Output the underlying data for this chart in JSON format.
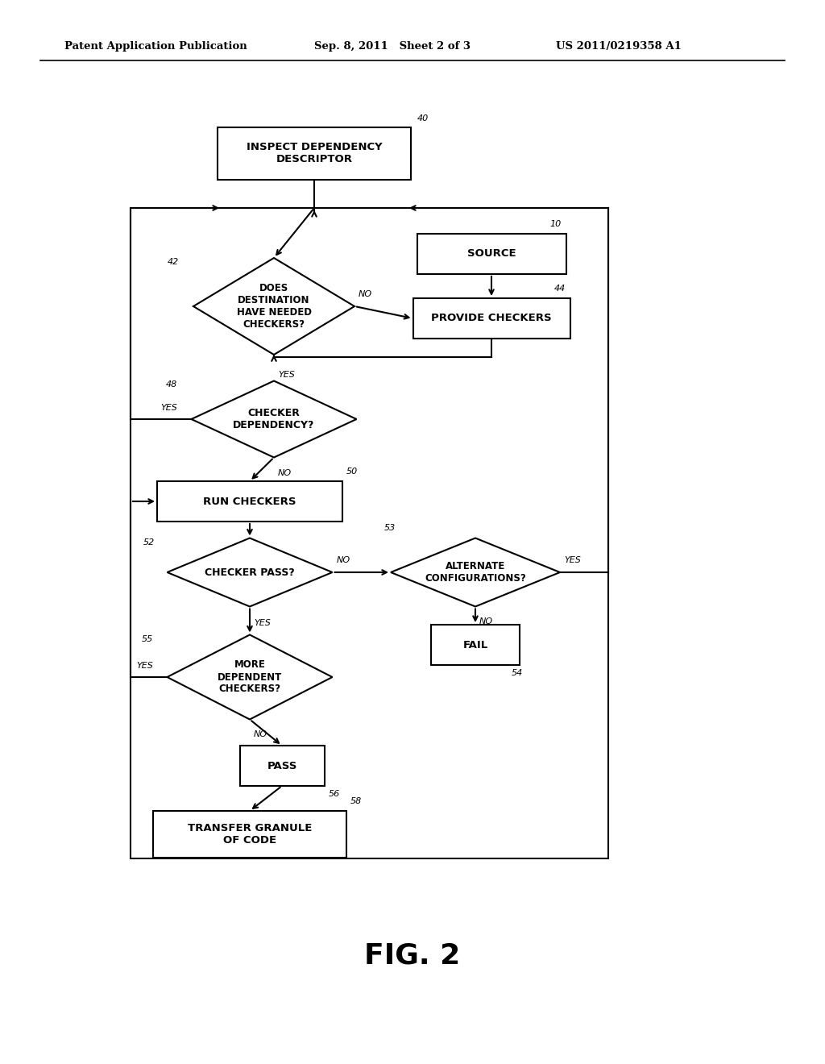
{
  "header_left": "Patent Application Publication",
  "header_mid": "Sep. 8, 2011   Sheet 2 of 3",
  "header_right": "US 2011/0219358 A1",
  "fig_label": "FIG. 2",
  "bg_color": "#ffffff",
  "line_color": "#000000"
}
